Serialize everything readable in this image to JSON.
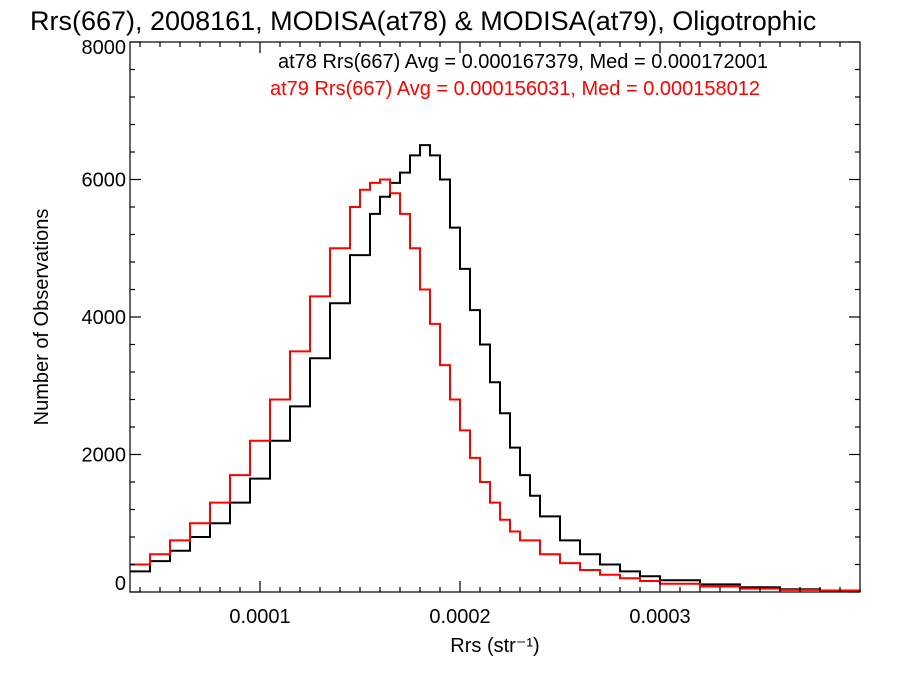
{
  "chart_data": {
    "type": "line",
    "title": "Rrs(667), 2008161, MODISA(at78) & MODISA(at79), Oligotrophic",
    "xlabel": "Rrs (str⁻¹)",
    "ylabel": "Number of Observations",
    "xlim": [
      3.5e-05,
      0.0004
    ],
    "ylim": [
      0,
      8000
    ],
    "x_ticks": [
      0.0001,
      0.0002,
      0.0003
    ],
    "x_tick_labels": [
      "0.0001",
      "0.0002",
      "0.0003"
    ],
    "y_ticks": [
      0,
      2000,
      4000,
      6000,
      8000
    ],
    "y_tick_labels": [
      "0",
      "2000",
      "4000",
      "6000",
      "8000"
    ],
    "legend_position": "top-right",
    "grid": false,
    "series": [
      {
        "name": "at78",
        "color": "#000000",
        "legend": "at78 Rrs(667) Avg = 0.000167379, Med = 0.000172001",
        "x": [
          3.5e-05,
          4.5e-05,
          5.5e-05,
          6.5e-05,
          7.5e-05,
          8.5e-05,
          9.5e-05,
          0.000105,
          0.000115,
          0.000125,
          0.000135,
          0.000145,
          0.000155,
          0.00016,
          0.000165,
          0.00017,
          0.000175,
          0.00018,
          0.000185,
          0.00019,
          0.000195,
          0.0002,
          0.000205,
          0.00021,
          0.000215,
          0.00022,
          0.000225,
          0.00023,
          0.000235,
          0.00024,
          0.00025,
          0.00026,
          0.00027,
          0.00028,
          0.00029,
          0.0003,
          0.00032,
          0.00034,
          0.00036,
          0.00038,
          0.0004
        ],
        "y": [
          300,
          450,
          600,
          800,
          1000,
          1300,
          1650,
          2200,
          2700,
          3400,
          4200,
          4900,
          5500,
          5750,
          5950,
          6100,
          6350,
          6500,
          6350,
          6000,
          5300,
          4700,
          4100,
          3600,
          3050,
          2600,
          2100,
          1700,
          1400,
          1100,
          750,
          550,
          400,
          300,
          230,
          170,
          110,
          70,
          40,
          20,
          10
        ]
      },
      {
        "name": "at79",
        "color": "#ff0000",
        "legend": "at79 Rrs(667) Avg = 0.000156031, Med = 0.000158012",
        "x": [
          3.5e-05,
          4.5e-05,
          5.5e-05,
          6.5e-05,
          7.5e-05,
          8.5e-05,
          9.5e-05,
          0.000105,
          0.000115,
          0.000125,
          0.000135,
          0.000145,
          0.00015,
          0.000155,
          0.00016,
          0.000165,
          0.00017,
          0.000175,
          0.00018,
          0.000185,
          0.00019,
          0.000195,
          0.0002,
          0.000205,
          0.00021,
          0.000215,
          0.00022,
          0.000225,
          0.00023,
          0.00024,
          0.00025,
          0.00026,
          0.00027,
          0.00028,
          0.00029,
          0.0003,
          0.00032,
          0.00034,
          0.00036,
          0.00038,
          0.0004
        ],
        "y": [
          400,
          550,
          750,
          1000,
          1300,
          1700,
          2200,
          2800,
          3500,
          4300,
          5000,
          5600,
          5850,
          5950,
          6000,
          5800,
          5500,
          5000,
          4400,
          3900,
          3300,
          2800,
          2350,
          1950,
          1600,
          1300,
          1050,
          880,
          750,
          550,
          420,
          320,
          250,
          200,
          160,
          120,
          80,
          50,
          30,
          15,
          10
        ]
      }
    ]
  }
}
